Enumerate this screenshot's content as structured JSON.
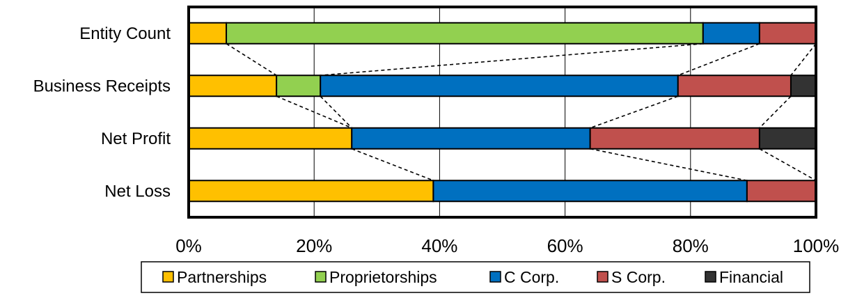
{
  "chart_data": {
    "type": "bar",
    "orientation": "horizontal",
    "stacked": "percent",
    "categories": [
      "Entity Count",
      "Business Receipts",
      "Net Profit",
      "Net Loss"
    ],
    "series": [
      {
        "name": "Partnerships",
        "color": "#FFC000",
        "values": [
          6,
          14,
          26,
          39
        ]
      },
      {
        "name": "Proprietorships",
        "color": "#92D050",
        "values": [
          76,
          7,
          0,
          0
        ]
      },
      {
        "name": "C Corp.",
        "color": "#0070C0",
        "values": [
          9,
          57,
          38,
          50
        ]
      },
      {
        "name": "S Corp.",
        "color": "#C0504D",
        "values": [
          9,
          18,
          27,
          11
        ]
      },
      {
        "name": "Financial",
        "color": "#333333",
        "values": [
          0,
          4,
          9,
          0
        ]
      }
    ],
    "xlim": [
      0,
      100
    ],
    "x_ticks": [
      "0%",
      "20%",
      "40%",
      "60%",
      "80%",
      "100%"
    ],
    "grid": "vertical",
    "connector_lines": "dashed",
    "legend_position": "bottom"
  }
}
